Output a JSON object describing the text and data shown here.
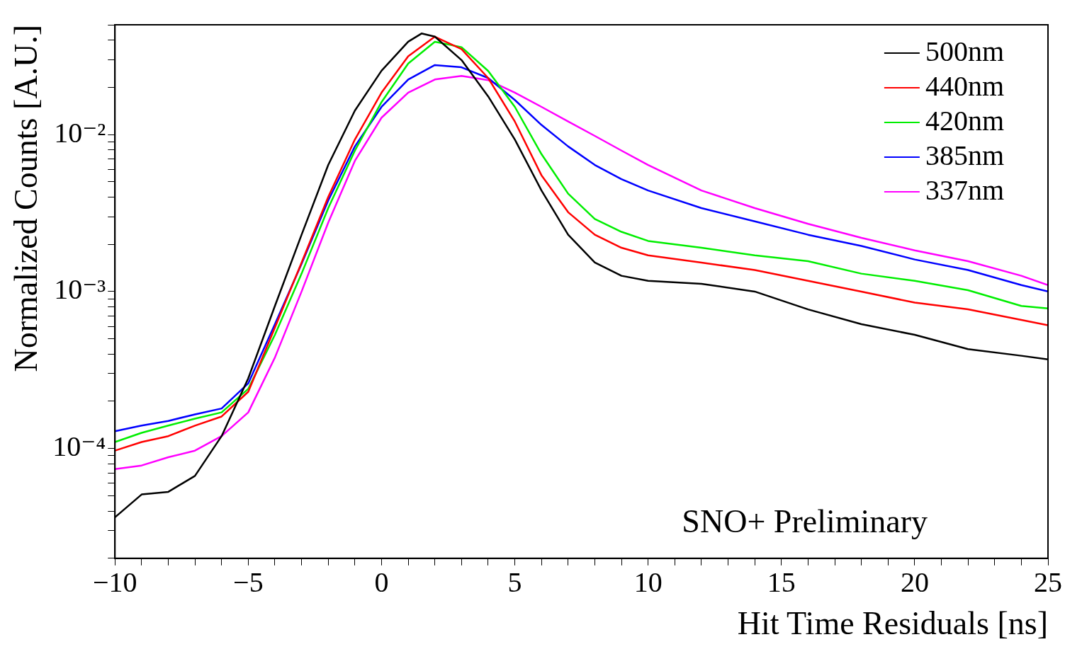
{
  "chart_data": {
    "type": "line",
    "xlabel": "Hit Time Residuals [ns]",
    "ylabel": "Normalized Counts [A.U.]",
    "annotations": [
      "SNO+ Preliminary"
    ],
    "log": "y",
    "grid": false,
    "legend": "top right",
    "marker": "none",
    "line_style": "solid",
    "xlim": [
      -10,
      25
    ],
    "ylim": [
      2e-05,
      0.05
    ],
    "xticks": [
      {
        "value": -10,
        "label": "−10"
      },
      {
        "value": -9,
        "label": null
      },
      {
        "value": -8,
        "label": null
      },
      {
        "value": -7,
        "label": null
      },
      {
        "value": -6,
        "label": null
      },
      {
        "value": -5,
        "label": "−5"
      },
      {
        "value": -4,
        "label": null
      },
      {
        "value": -3,
        "label": null
      },
      {
        "value": -2,
        "label": null
      },
      {
        "value": -1,
        "label": null
      },
      0,
      {
        "value": 1,
        "label": null
      },
      {
        "value": 2,
        "label": null
      },
      {
        "value": 3,
        "label": null
      },
      {
        "value": 4,
        "label": null
      },
      5,
      {
        "value": 6,
        "label": null
      },
      {
        "value": 7,
        "label": null
      },
      {
        "value": 8,
        "label": null
      },
      {
        "value": 9,
        "label": null
      },
      10,
      {
        "value": 11,
        "label": null
      },
      {
        "value": 12,
        "label": null
      },
      {
        "value": 13,
        "label": null
      },
      {
        "value": 14,
        "label": null
      },
      15,
      {
        "value": 16,
        "label": null
      },
      {
        "value": 17,
        "label": null
      },
      {
        "value": 18,
        "label": null
      },
      {
        "value": 19,
        "label": null
      },
      20,
      {
        "value": 21,
        "label": null
      },
      {
        "value": 22,
        "label": null
      },
      {
        "value": 23,
        "label": null
      },
      {
        "value": 24,
        "label": null
      },
      25
    ],
    "yticks": [
      {
        "value": 2e-05,
        "label": null
      },
      {
        "value": 3e-05,
        "label": null
      },
      {
        "value": 4e-05,
        "label": null
      },
      {
        "value": 5e-05,
        "label": null
      },
      {
        "value": 6e-05,
        "label": null
      },
      {
        "value": 7e-05,
        "label": null
      },
      {
        "value": 8e-05,
        "label": null
      },
      {
        "value": 9e-05,
        "label": null
      },
      {
        "value": 0.0001,
        "label": "10⁻⁴"
      },
      {
        "value": 0.0002,
        "label": null
      },
      {
        "value": 0.0003,
        "label": null
      },
      {
        "value": 0.0004,
        "label": null
      },
      {
        "value": 0.0005,
        "label": null
      },
      {
        "value": 0.0006,
        "label": null
      },
      {
        "value": 0.0007,
        "label": null
      },
      {
        "value": 0.0008,
        "label": null
      },
      {
        "value": 0.0009,
        "label": null
      },
      {
        "value": 0.001,
        "label": "10⁻³"
      },
      {
        "value": 0.002,
        "label": null
      },
      {
        "value": 0.003,
        "label": null
      },
      {
        "value": 0.004,
        "label": null
      },
      {
        "value": 0.005,
        "label": null
      },
      {
        "value": 0.006,
        "label": null
      },
      {
        "value": 0.007,
        "label": null
      },
      {
        "value": 0.008,
        "label": null
      },
      {
        "value": 0.009,
        "label": null
      },
      {
        "value": 0.01,
        "label": "10⁻²"
      },
      {
        "value": 0.02,
        "label": null
      },
      {
        "value": 0.03,
        "label": null
      },
      {
        "value": 0.04,
        "label": null
      },
      {
        "value": 0.05,
        "label": null
      }
    ],
    "x": [
      -10,
      -9,
      -8,
      -7,
      -6,
      -5,
      -4,
      -3,
      -2,
      -1,
      0,
      1,
      2,
      3,
      4,
      5,
      6,
      7,
      8,
      9,
      10,
      12,
      14,
      16,
      18,
      20,
      22,
      24,
      25
    ],
    "series": [
      {
        "name": "500nm",
        "color": "#000000",
        "x": [
          -10,
          -9,
          -8,
          -7,
          -6,
          -5,
          -4,
          -3,
          -2,
          -1,
          0,
          1,
          1.5,
          2,
          3,
          4,
          5,
          6,
          7,
          8,
          9,
          10,
          12,
          14,
          16,
          18,
          20,
          22,
          24,
          25
        ],
        "values": [
          3.65e-05,
          5.1e-05,
          5.3e-05,
          6.7e-05,
          0.00012,
          0.00028,
          0.00081,
          0.0023,
          0.0064,
          0.0142,
          0.0255,
          0.039,
          0.044,
          0.042,
          0.0298,
          0.0175,
          0.0093,
          0.0044,
          0.0023,
          0.00153,
          0.00126,
          0.00117,
          0.00112,
          0.001,
          0.00077,
          0.00062,
          0.00053,
          0.00043,
          0.00039,
          0.00037
        ]
      },
      {
        "name": "440nm",
        "color": "#ff0000",
        "values": [
          9.7e-05,
          0.00011,
          0.00012,
          0.00014,
          0.00016,
          0.00023,
          0.00059,
          0.00153,
          0.004,
          0.0093,
          0.0185,
          0.0315,
          0.042,
          0.035,
          0.0229,
          0.0121,
          0.0055,
          0.0032,
          0.0023,
          0.0019,
          0.0017,
          0.00153,
          0.00137,
          0.00117,
          0.001,
          0.00085,
          0.00077,
          0.00066,
          0.00061
        ]
      },
      {
        "name": "420nm",
        "color": "#00ee00",
        "values": [
          0.00011,
          0.000126,
          0.00014,
          0.000155,
          0.00017,
          0.00024,
          0.00053,
          0.0013,
          0.0034,
          0.0079,
          0.0161,
          0.0283,
          0.039,
          0.036,
          0.0254,
          0.015,
          0.0075,
          0.0042,
          0.0029,
          0.0024,
          0.0021,
          0.0019,
          0.0017,
          0.00156,
          0.0013,
          0.00117,
          0.00102,
          0.00081,
          0.00078
        ]
      },
      {
        "name": "385nm",
        "color": "#0000ff",
        "values": [
          0.000129,
          0.00014,
          0.00015,
          0.000165,
          0.00018,
          0.00026,
          0.00062,
          0.0015,
          0.0038,
          0.0084,
          0.015,
          0.0224,
          0.0277,
          0.0268,
          0.0229,
          0.0166,
          0.0115,
          0.0084,
          0.0064,
          0.0052,
          0.0044,
          0.0034,
          0.0028,
          0.0023,
          0.00195,
          0.0016,
          0.00137,
          0.0011,
          0.001
        ]
      },
      {
        "name": "337nm",
        "color": "#ff00ff",
        "values": [
          7.4e-05,
          7.8e-05,
          8.8e-05,
          9.7e-05,
          0.00012,
          0.00017,
          0.00038,
          0.001,
          0.00275,
          0.0068,
          0.0128,
          0.0185,
          0.0224,
          0.0236,
          0.0222,
          0.0185,
          0.015,
          0.0121,
          0.0098,
          0.0079,
          0.0064,
          0.0044,
          0.0034,
          0.0027,
          0.0022,
          0.00183,
          0.00156,
          0.00126,
          0.0011
        ]
      }
    ]
  }
}
